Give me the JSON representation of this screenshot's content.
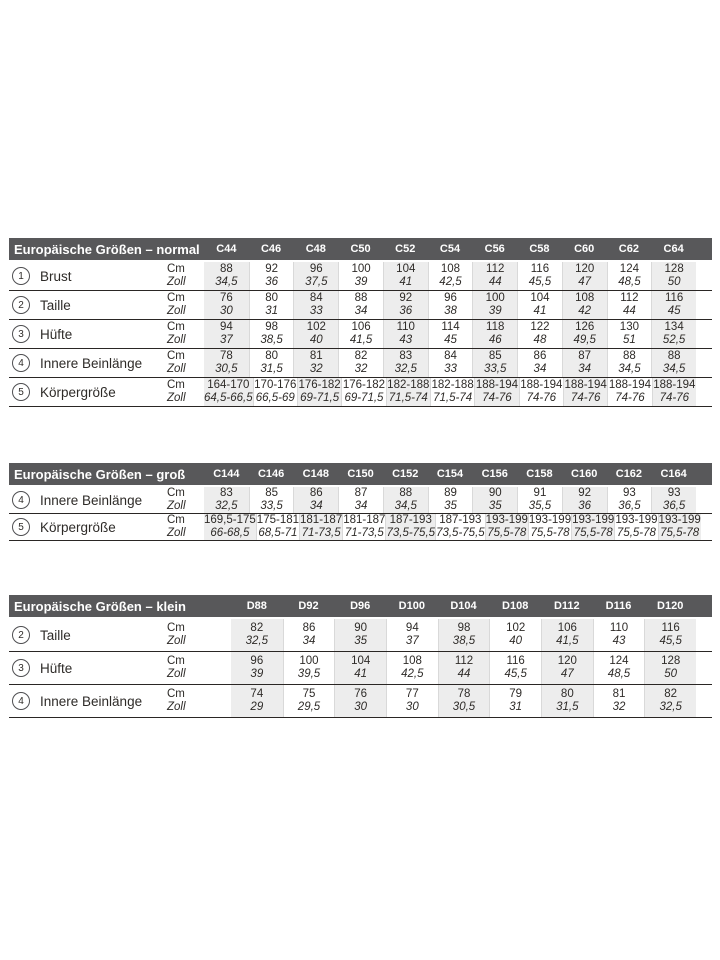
{
  "colors": {
    "header_bar": "#58585a",
    "header_text": "#ffffff",
    "column_stripe": "#ededed",
    "row_rule": "#2a2624",
    "column_separator": "#d9d9d9",
    "text": "#2e2b28",
    "background": "#ffffff"
  },
  "tables": [
    {
      "id": "normal",
      "title": "Europäische Größen – normal",
      "columns": [
        "C44",
        "C46",
        "C48",
        "C50",
        "C52",
        "C54",
        "C56",
        "C58",
        "C60",
        "C62",
        "C64"
      ],
      "unit_labels": {
        "primary": "Cm",
        "secondary": "Zoll"
      },
      "rows": [
        {
          "num": "1",
          "label": "Brust",
          "cm": [
            "88",
            "92",
            "96",
            "100",
            "104",
            "108",
            "112",
            "116",
            "120",
            "124",
            "128"
          ],
          "zoll": [
            "34,5",
            "36",
            "37,5",
            "39",
            "41",
            "42,5",
            "44",
            "45,5",
            "47",
            "48,5",
            "50"
          ]
        },
        {
          "num": "2",
          "label": "Taille",
          "cm": [
            "76",
            "80",
            "84",
            "88",
            "92",
            "96",
            "100",
            "104",
            "108",
            "112",
            "116"
          ],
          "zoll": [
            "30",
            "31",
            "33",
            "34",
            "36",
            "38",
            "39",
            "41",
            "42",
            "44",
            "45"
          ]
        },
        {
          "num": "3",
          "label": "Hüfte",
          "cm": [
            "94",
            "98",
            "102",
            "106",
            "110",
            "114",
            "118",
            "122",
            "126",
            "130",
            "134"
          ],
          "zoll": [
            "37",
            "38,5",
            "40",
            "41,5",
            "43",
            "45",
            "46",
            "48",
            "49,5",
            "51",
            "52,5"
          ]
        },
        {
          "num": "4",
          "label": "Innere Beinlänge",
          "cm": [
            "78",
            "80",
            "81",
            "82",
            "83",
            "84",
            "85",
            "86",
            "87",
            "88",
            "88"
          ],
          "zoll": [
            "30,5",
            "31,5",
            "32",
            "32",
            "32,5",
            "33",
            "33,5",
            "34",
            "34",
            "34,5",
            "34,5"
          ]
        },
        {
          "num": "5",
          "label": "Körpergröße",
          "cm": [
            "164-170",
            "170-176",
            "176-182",
            "176-182",
            "182-188",
            "182-188",
            "188-194",
            "188-194",
            "188-194",
            "188-194",
            "188-194"
          ],
          "zoll": [
            "64,5-66,5",
            "66,5-69",
            "69-71,5",
            "69-71,5",
            "71,5-74",
            "71,5-74",
            "74-76",
            "74-76",
            "74-76",
            "74-76",
            "74-76"
          ]
        }
      ]
    },
    {
      "id": "gross",
      "title": "Europäische Größen – groß",
      "columns": [
        "C144",
        "C146",
        "C148",
        "C150",
        "C152",
        "C154",
        "C156",
        "C158",
        "C160",
        "C162",
        "C164"
      ],
      "unit_labels": {
        "primary": "Cm",
        "secondary": "Zoll"
      },
      "rows": [
        {
          "num": "4",
          "label": "Innere Beinlänge",
          "cm": [
            "83",
            "85",
            "86",
            "87",
            "88",
            "89",
            "90",
            "91",
            "92",
            "93",
            "93"
          ],
          "zoll": [
            "32,5",
            "33,5",
            "34",
            "34",
            "34,5",
            "35",
            "35",
            "35,5",
            "36",
            "36,5",
            "36,5"
          ]
        },
        {
          "num": "5",
          "label": "Körpergröße",
          "cm": [
            "169,5-175",
            "175-181",
            "181-187",
            "181-187",
            "187-193",
            "187-193",
            "193-199",
            "193-199",
            "193-199",
            "193-199",
            "193-199"
          ],
          "zoll": [
            "66-68,5",
            "68,5-71",
            "71-73,5",
            "71-73,5",
            "73,5-75,5",
            "73,5-75,5",
            "75,5-78",
            "75,5-78",
            "75,5-78",
            "75,5-78",
            "75,5-78"
          ]
        }
      ]
    },
    {
      "id": "klein",
      "title": "Europäische Größen – klein",
      "columns": [
        "D88",
        "D92",
        "D96",
        "D100",
        "D104",
        "D108",
        "D112",
        "D116",
        "D120"
      ],
      "unit_labels": {
        "primary": "Cm",
        "secondary": "Zoll"
      },
      "rows": [
        {
          "num": "2",
          "label": "Taille",
          "cm": [
            "82",
            "86",
            "90",
            "94",
            "98",
            "102",
            "106",
            "110",
            "116"
          ],
          "zoll": [
            "32,5",
            "34",
            "35",
            "37",
            "38,5",
            "40",
            "41,5",
            "43",
            "45,5"
          ]
        },
        {
          "num": "3",
          "label": "Hüfte",
          "cm": [
            "96",
            "100",
            "104",
            "108",
            "112",
            "116",
            "120",
            "124",
            "128"
          ],
          "zoll": [
            "39",
            "39,5",
            "41",
            "42,5",
            "44",
            "45,5",
            "47",
            "48,5",
            "50"
          ]
        },
        {
          "num": "4",
          "label": "Innere Beinlänge",
          "cm": [
            "74",
            "75",
            "76",
            "77",
            "78",
            "79",
            "80",
            "81",
            "82"
          ],
          "zoll": [
            "29",
            "29,5",
            "30",
            "30",
            "30,5",
            "31",
            "31,5",
            "32",
            "32,5"
          ]
        }
      ]
    }
  ]
}
